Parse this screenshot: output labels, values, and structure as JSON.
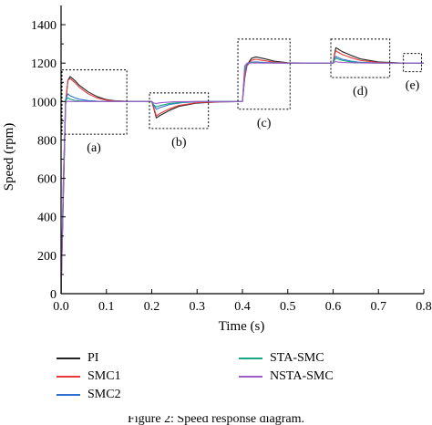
{
  "chart_data": {
    "type": "line",
    "xlabel": "Time (s)",
    "ylabel": "Speed (rpm)",
    "xlim": [
      0,
      0.8
    ],
    "ylim": [
      0,
      1500
    ],
    "xticks": [
      0,
      0.1,
      0.2,
      0.3,
      0.4,
      0.5,
      0.6,
      0.7,
      0.8
    ],
    "xtick_labels": [
      "0.0",
      "0.1",
      "0.2",
      "0.3",
      "0.4",
      "0.5",
      "0.6",
      "0.7",
      "0.8"
    ],
    "yticks": [
      0,
      200,
      400,
      600,
      800,
      1000,
      1200,
      1400
    ],
    "yticks_minor": [
      100,
      300,
      500,
      700,
      900,
      1100,
      1300
    ],
    "ytick_labels": [
      "0",
      "200",
      "400",
      "600",
      "800",
      "1000",
      "1200",
      "1400"
    ],
    "grid": false,
    "legend_position": "bottom",
    "series": [
      {
        "name": "PI",
        "color": "#222222",
        "x": [
          0,
          0.005,
          0.01,
          0.015,
          0.02,
          0.03,
          0.04,
          0.06,
          0.08,
          0.1,
          0.12,
          0.15,
          0.2,
          0.205,
          0.21,
          0.22,
          0.24,
          0.26,
          0.3,
          0.35,
          0.4,
          0.405,
          0.41,
          0.42,
          0.43,
          0.45,
          0.47,
          0.5,
          0.55,
          0.6,
          0.603,
          0.606,
          0.61,
          0.62,
          0.64,
          0.66,
          0.7,
          0.75,
          0.8
        ],
        "y": [
          0,
          500,
          980,
          1110,
          1130,
          1110,
          1085,
          1050,
          1025,
          1010,
          1004,
          1001,
          1000,
          960,
          915,
          930,
          955,
          975,
          992,
          998,
          1000,
          1120,
          1190,
          1225,
          1232,
          1222,
          1210,
          1202,
          1200,
          1200,
          1245,
          1280,
          1275,
          1260,
          1240,
          1222,
          1206,
          1201,
          1200
        ]
      },
      {
        "name": "SMC1",
        "color": "#e8383c",
        "x": [
          0,
          0.005,
          0.01,
          0.015,
          0.02,
          0.03,
          0.04,
          0.06,
          0.08,
          0.1,
          0.12,
          0.15,
          0.2,
          0.205,
          0.21,
          0.22,
          0.24,
          0.26,
          0.3,
          0.35,
          0.4,
          0.405,
          0.41,
          0.42,
          0.43,
          0.45,
          0.47,
          0.5,
          0.55,
          0.6,
          0.603,
          0.606,
          0.61,
          0.62,
          0.64,
          0.66,
          0.7,
          0.75,
          0.8
        ],
        "y": [
          0,
          520,
          1000,
          1110,
          1120,
          1100,
          1075,
          1040,
          1018,
          1007,
          1003,
          1001,
          1000,
          965,
          925,
          940,
          963,
          980,
          994,
          999,
          1000,
          1125,
          1185,
          1215,
          1220,
          1212,
          1205,
          1201,
          1200,
          1200,
          1240,
          1265,
          1258,
          1245,
          1228,
          1214,
          1203,
          1200,
          1200
        ]
      },
      {
        "name": "SMC2",
        "color": "#2e6fd0",
        "x": [
          0,
          0.005,
          0.01,
          0.015,
          0.02,
          0.03,
          0.04,
          0.06,
          0.08,
          0.1,
          0.15,
          0.2,
          0.205,
          0.21,
          0.22,
          0.24,
          0.27,
          0.3,
          0.35,
          0.4,
          0.405,
          0.41,
          0.42,
          0.43,
          0.45,
          0.5,
          0.55,
          0.6,
          0.603,
          0.606,
          0.61,
          0.62,
          0.64,
          0.66,
          0.7,
          0.8
        ],
        "y": [
          0,
          560,
          1010,
          1040,
          1030,
          1020,
          1012,
          1005,
          1002,
          1001,
          1000,
          1000,
          978,
          960,
          970,
          985,
          995,
          999,
          1000,
          1000,
          1150,
          1195,
          1205,
          1206,
          1203,
          1200,
          1200,
          1200,
          1222,
          1235,
          1230,
          1220,
          1210,
          1204,
          1201,
          1200
        ]
      },
      {
        "name": "STA-SMC",
        "color": "#1aa884",
        "x": [
          0,
          0.005,
          0.01,
          0.015,
          0.02,
          0.03,
          0.04,
          0.06,
          0.08,
          0.1,
          0.15,
          0.2,
          0.205,
          0.21,
          0.22,
          0.24,
          0.27,
          0.3,
          0.35,
          0.4,
          0.405,
          0.41,
          0.42,
          0.43,
          0.45,
          0.5,
          0.55,
          0.6,
          0.603,
          0.606,
          0.61,
          0.62,
          0.64,
          0.66,
          0.7,
          0.8
        ],
        "y": [
          0,
          580,
          1005,
          1020,
          1012,
          1006,
          1003,
          1001,
          1000,
          1000,
          1000,
          1000,
          982,
          972,
          980,
          990,
          997,
          1000,
          1000,
          1000,
          1165,
          1198,
          1203,
          1202,
          1201,
          1200,
          1200,
          1200,
          1215,
          1225,
          1222,
          1214,
          1206,
          1202,
          1200,
          1200
        ]
      },
      {
        "name": "NSTA-SMC",
        "color": "#a05cc8",
        "x": [
          0,
          0.005,
          0.01,
          0.015,
          0.02,
          0.03,
          0.05,
          0.1,
          0.2,
          0.205,
          0.21,
          0.22,
          0.25,
          0.3,
          0.4,
          0.405,
          0.41,
          0.42,
          0.45,
          0.5,
          0.6,
          0.603,
          0.606,
          0.61,
          0.62,
          0.65,
          0.7,
          0.8
        ],
        "y": [
          0,
          600,
          995,
          1002,
          1000,
          1000,
          1000,
          1000,
          1000,
          992,
          990,
          994,
          999,
          1000,
          1000,
          1185,
          1200,
          1201,
          1200,
          1200,
          1200,
          1205,
          1208,
          1206,
          1203,
          1201,
          1200,
          1200
        ]
      }
    ],
    "zoom_boxes": [
      {
        "label": "(a)",
        "x": [
          0.0,
          0.145
        ],
        "y": [
          830,
          1165
        ]
      },
      {
        "label": "(b)",
        "x": [
          0.195,
          0.325
        ],
        "y": [
          860,
          1045
        ]
      },
      {
        "label": "(c)",
        "x": [
          0.39,
          0.505
        ],
        "y": [
          960,
          1325
        ]
      },
      {
        "label": "(d)",
        "x": [
          0.595,
          0.725
        ],
        "y": [
          1125,
          1325
        ]
      },
      {
        "label": "(e)",
        "x": [
          0.755,
          0.795
        ],
        "y": [
          1155,
          1250
        ]
      }
    ]
  },
  "caption": "Figure 2: Speed response diagram."
}
